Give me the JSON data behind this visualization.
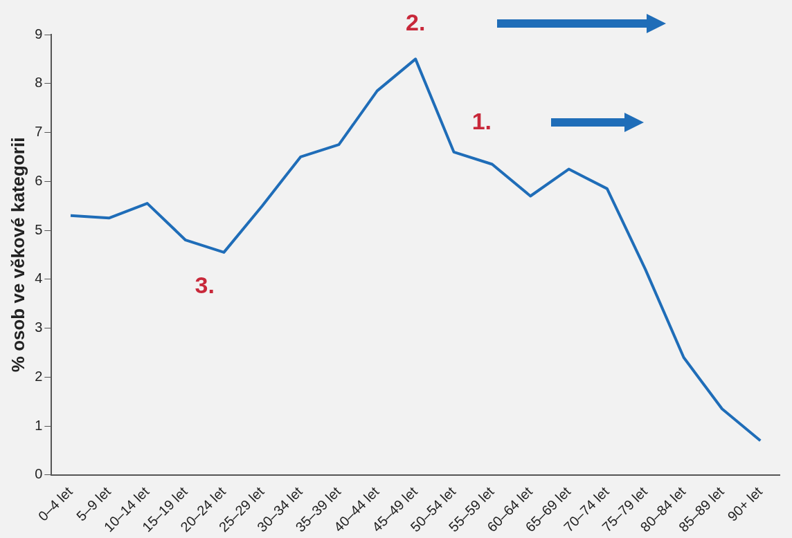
{
  "chart_data": {
    "type": "line",
    "ylabel": "% osob ve věkové kategorii",
    "categories": [
      "0–4 let",
      "5–9 let",
      "10–14 let",
      "15–19 let",
      "20–24 let",
      "25–29 let",
      "30–34 let",
      "35–39 let",
      "40–44 let",
      "45–49 let",
      "50–54 let",
      "55–59 let",
      "60–64 let",
      "65–69 let",
      "70–74 let",
      "75–79 let",
      "80–84 let",
      "85–89 let",
      "90+ let"
    ],
    "series": [
      {
        "color": "#1f6db8",
        "values": [
          5.3,
          5.25,
          5.55,
          4.8,
          4.55,
          5.5,
          6.5,
          6.75,
          7.85,
          8.5,
          6.6,
          6.35,
          5.7,
          6.25,
          5.85,
          4.2,
          2.4,
          1.35,
          0.7
        ]
      }
    ],
    "ylim": [
      0,
      9
    ],
    "yticks": [
      0,
      1,
      2,
      3,
      4,
      5,
      6,
      7,
      8,
      9
    ],
    "grid": false,
    "legend": false,
    "marker": "none",
    "line_style": "solid",
    "annotations": [
      "1.",
      "2.",
      "3."
    ]
  }
}
